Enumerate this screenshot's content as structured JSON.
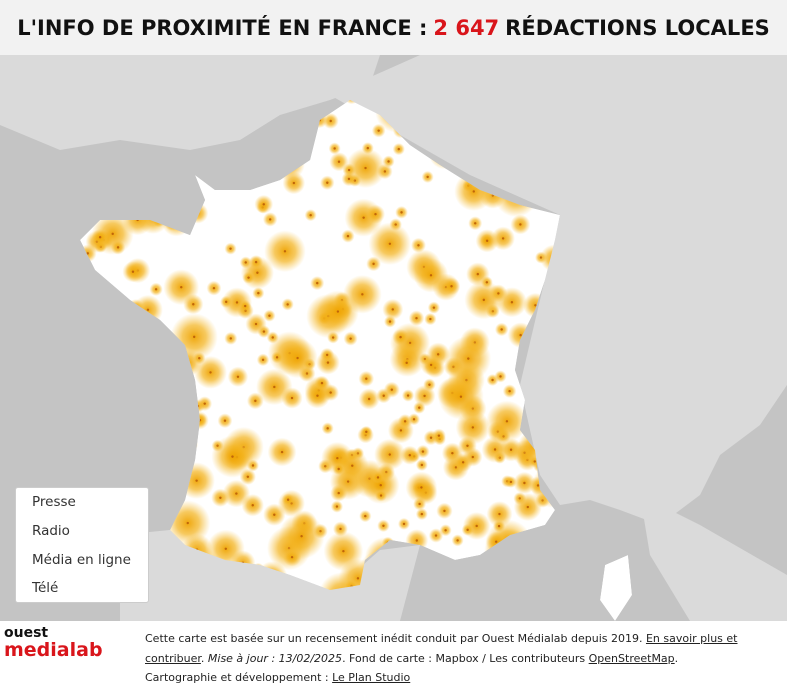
{
  "header": {
    "title_start": "L'INFO DE PROXIMITÉ EN FRANCE :",
    "title_count": "2 647",
    "title_end": "RÉDACTIONS LOCALES"
  },
  "legend": {
    "items": [
      "Presse",
      "Radio",
      "Média en ligne",
      "Télé"
    ]
  },
  "logo": {
    "top": "ouest",
    "bottom": "medialab"
  },
  "footer": {
    "text_1": "Cette carte est basée sur un recensement inédit conduit par Ouest Médialab depuis 2019. ",
    "link_1": "En savoir plus et contribuer",
    "text_2": ". ",
    "update": "Mise à jour : 13/02/2025",
    "text_3": ". Fond de carte : Mapbox / Les contributeurs ",
    "link_2": "OpenStreetMap",
    "text_4": ".",
    "text_5": "Cartographie et développement : ",
    "link_3": "Le Plan Studio"
  }
}
